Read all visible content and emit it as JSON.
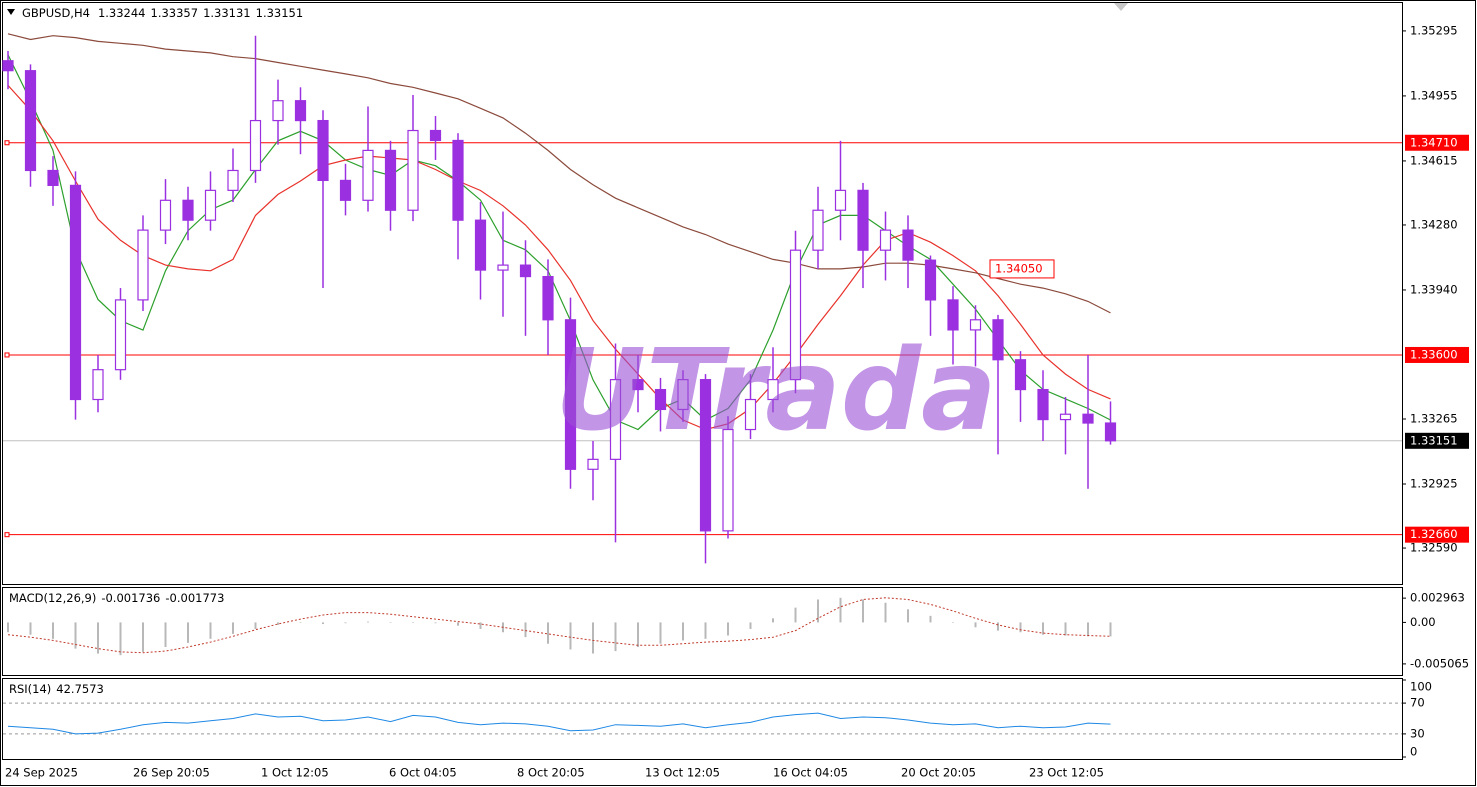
{
  "chart_data": [
    {
      "type": "candlestick",
      "title": "GBPUSD,H4",
      "header_values": [
        1.33244,
        1.33357,
        1.33131,
        1.33151
      ],
      "watermark": "UTrada",
      "ylim": [
        1.32402,
        1.35441
      ],
      "yticks": [
        1.35295,
        1.34955,
        1.34615,
        {
          "value": 1.3428,
          "label": "1.34280"
        },
        {
          "value": 1.3394,
          "label": "1.33940"
        },
        1.33265,
        1.32925,
        {
          "value": 1.3259,
          "label": "1.32590"
        }
      ],
      "bull_color": "#ffffff",
      "bear_color": "#9b30e0",
      "open": [
        1.35139,
        1.35087,
        1.34565,
        1.34487,
        1.33367,
        1.33523,
        1.33888,
        1.34253,
        1.34409,
        1.34305,
        1.34461,
        1.34565,
        1.34826,
        1.3493,
        1.34826,
        1.34513,
        1.34409,
        1.3467,
        1.34357,
        1.34774,
        1.34722,
        1.34305,
        1.34044,
        1.3407,
        1.3401,
        1.33784,
        1.33002,
        1.33054,
        1.33471,
        1.33419,
        1.33315,
        1.33471,
        1.3268,
        1.3321,
        1.33367,
        1.33471,
        1.34148,
        1.34357,
        1.34461,
        1.34148,
        1.34253,
        1.34096,
        1.33888,
        1.33731,
        1.33784,
        1.33575,
        1.33419,
        1.33262,
        1.3329,
        1.33244
      ],
      "high": [
        1.3519,
        1.3512,
        1.3464,
        1.3456,
        1.336,
        1.3395,
        1.3433,
        1.3452,
        1.3448,
        1.3456,
        1.3468,
        1.3527,
        1.3504,
        1.35,
        1.3488,
        1.346,
        1.349,
        1.3472,
        1.3496,
        1.3485,
        1.3476,
        1.344,
        1.3435,
        1.342,
        1.341,
        1.339,
        1.3315,
        1.3366,
        1.336,
        1.3348,
        1.3352,
        1.335,
        1.3328,
        1.335,
        1.3364,
        1.3425,
        1.3448,
        1.3472,
        1.345,
        1.3435,
        1.3433,
        1.3412,
        1.3396,
        1.3386,
        1.3381,
        1.3362,
        1.3352,
        1.3338,
        1.336,
        1.33357
      ],
      "low": [
        1.3499,
        1.3448,
        1.3438,
        1.33262,
        1.333,
        1.3347,
        1.3383,
        1.3418,
        1.342,
        1.3425,
        1.344,
        1.345,
        1.347,
        1.3465,
        1.3395,
        1.3433,
        1.3435,
        1.3425,
        1.343,
        1.3462,
        1.341,
        1.3389,
        1.338,
        1.337,
        1.336,
        1.329,
        1.3284,
        1.3262,
        1.333,
        1.332,
        1.3325,
        1.3251,
        1.3264,
        1.3316,
        1.333,
        1.334,
        1.3405,
        1.342,
        1.3395,
        1.3399,
        1.3395,
        1.337,
        1.3355,
        1.3354,
        1.3308,
        1.3325,
        1.3315,
        1.3308,
        1.329,
        1.33131
      ],
      "close": [
        1.35087,
        1.34565,
        1.34487,
        1.33367,
        1.33523,
        1.33888,
        1.34253,
        1.34409,
        1.34305,
        1.34461,
        1.34565,
        1.34826,
        1.3493,
        1.34826,
        1.34513,
        1.34409,
        1.3467,
        1.34357,
        1.34774,
        1.34722,
        1.34305,
        1.34044,
        1.3407,
        1.3401,
        1.33784,
        1.33002,
        1.33054,
        1.33471,
        1.33419,
        1.33315,
        1.33471,
        1.3268,
        1.3321,
        1.33367,
        1.33471,
        1.34148,
        1.34357,
        1.34461,
        1.34148,
        1.34253,
        1.34096,
        1.33888,
        1.33731,
        1.33784,
        1.33575,
        1.33419,
        1.33262,
        1.3329,
        1.33244,
        1.33151
      ],
      "moving_averages": [
        {
          "color": "#2ca02c",
          "values": [
            1.3517,
            1.3493,
            1.3467,
            1.3415,
            1.3389,
            1.3378,
            1.3373,
            1.3404,
            1.3425,
            1.3436,
            1.3441,
            1.3457,
            1.3472,
            1.3477,
            1.3472,
            1.3462,
            1.3457,
            1.3454,
            1.3462,
            1.3459,
            1.3451,
            1.3441,
            1.342,
            1.3415,
            1.3404,
            1.3378,
            1.3347,
            1.3326,
            1.3321,
            1.3332,
            1.3337,
            1.3326,
            1.3332,
            1.3347,
            1.3373,
            1.3404,
            1.3428,
            1.3433,
            1.3433,
            1.3425,
            1.3417,
            1.341,
            1.3397,
            1.3384,
            1.3368,
            1.3352,
            1.3342,
            1.3337,
            1.3332,
            1.3326
          ]
        },
        {
          "color": "#e8322b",
          "values": [
            1.3501,
            1.3488,
            1.3472,
            1.3451,
            1.3431,
            1.342,
            1.3412,
            1.3407,
            1.3405,
            1.3404,
            1.341,
            1.3433,
            1.3444,
            1.3451,
            1.3459,
            1.3462,
            1.3464,
            1.3463,
            1.3462,
            1.3457,
            1.3451,
            1.3446,
            1.3438,
            1.3428,
            1.3415,
            1.3399,
            1.3378,
            1.3363,
            1.335,
            1.3337,
            1.3326,
            1.3321,
            1.3324,
            1.3332,
            1.3345,
            1.336,
            1.3376,
            1.3391,
            1.3407,
            1.342,
            1.3424,
            1.3419,
            1.3412,
            1.3404,
            1.3391,
            1.3376,
            1.336,
            1.335,
            1.3342,
            1.3337
          ]
        },
        {
          "color": "#8b4a3c",
          "values": [
            1.3528,
            1.3525,
            1.3527,
            1.3526,
            1.3524,
            1.3523,
            1.3522,
            1.352,
            1.3519,
            1.3518,
            1.3516,
            1.3515,
            1.3513,
            1.3511,
            1.3509,
            1.3507,
            1.3505,
            1.3502,
            1.35,
            1.3497,
            1.3494,
            1.3489,
            1.3484,
            1.3476,
            1.3467,
            1.3457,
            1.3449,
            1.3442,
            1.3437,
            1.3432,
            1.3427,
            1.3423,
            1.3418,
            1.3414,
            1.341,
            1.3408,
            1.3405,
            1.3405,
            1.3406,
            1.3408,
            1.3408,
            1.3407,
            1.3405,
            1.3403,
            1.34,
            1.3397,
            1.3395,
            1.3392,
            1.3388,
            1.3382
          ]
        }
      ],
      "levels": [
        {
          "value": 1.3471,
          "label": "1.34710"
        },
        {
          "value": 1.336,
          "label": "1.33600"
        },
        {
          "value": 1.3266,
          "label": "1.32660"
        }
      ],
      "level_color": "#ff0000",
      "annotation": {
        "value": 1.3405,
        "label": "1.34050"
      },
      "current_price": 1.33151
    },
    {
      "type": "bar",
      "title": "MACD(12,26,9)",
      "header_values": [
        -0.001736,
        -0.001773
      ],
      "ylim": [
        -0.00642,
        0.0042
      ],
      "yticks": [
        0.002963,
        {
          "value": 0,
          "label": "0.00"
        },
        -0.005065
      ],
      "color": "#b8b8b8",
      "signal_color": "#c0392b",
      "values": [
        -0.0012,
        -0.0015,
        -0.002,
        -0.0032,
        -0.0038,
        -0.004,
        -0.0036,
        -0.003,
        -0.0025,
        -0.002,
        -0.0014,
        -0.0008,
        -0.0003,
        0.0,
        -0.0002,
        -0.0001,
        0.0001,
        0.0,
        0.0,
        -0.0001,
        -0.0004,
        -0.0008,
        -0.0012,
        -0.0018,
        -0.0026,
        -0.0033,
        -0.0038,
        -0.0035,
        -0.003,
        -0.0026,
        -0.0022,
        -0.002,
        -0.0016,
        -0.0008,
        0.0005,
        0.0018,
        0.0028,
        0.003,
        0.0028,
        0.0024,
        0.0016,
        0.0008,
        0.0,
        -0.0006,
        -0.001,
        -0.0012,
        -0.0015,
        -0.0016,
        -0.0017,
        -0.0017
      ],
      "signal": [
        -0.0015,
        -0.0018,
        -0.0022,
        -0.0027,
        -0.0032,
        -0.0036,
        -0.0037,
        -0.0035,
        -0.003,
        -0.0024,
        -0.0017,
        -0.0009,
        -0.0002,
        0.0004,
        0.0009,
        0.0012,
        0.0012,
        0.001,
        0.0007,
        0.0004,
        0.0001,
        -0.0002,
        -0.0006,
        -0.001,
        -0.0014,
        -0.0018,
        -0.0022,
        -0.0025,
        -0.0028,
        -0.0028,
        -0.0026,
        -0.0024,
        -0.0023,
        -0.0021,
        -0.0018,
        -0.001,
        0.0005,
        0.0019,
        0.0028,
        0.003,
        0.0028,
        0.0022,
        0.0014,
        0.0005,
        -0.0003,
        -0.0009,
        -0.0013,
        -0.0015,
        -0.0016,
        -0.0017
      ]
    },
    {
      "type": "line",
      "title": "RSI(14)",
      "header_values": [
        42.7573
      ],
      "ylim": [
        0,
        100
      ],
      "yticks": [
        100,
        70,
        30,
        0
      ],
      "levels": [
        70,
        30
      ],
      "color": "#1e88e5",
      "values": [
        40,
        38,
        36,
        30,
        31,
        36,
        42,
        45,
        44,
        47,
        50,
        56,
        52,
        53,
        47,
        48,
        52,
        46,
        54,
        52,
        45,
        42,
        44,
        43,
        40,
        34,
        35,
        42,
        41,
        40,
        43,
        38,
        42,
        45,
        52,
        55,
        57,
        50,
        52,
        51,
        48,
        44,
        42,
        43,
        38,
        40,
        38,
        39,
        44,
        42.7573
      ],
      "x_labels": [
        "24 Sep 2025",
        "26 Sep 20:05",
        "1 Oct 12:05",
        "6 Oct 04:05",
        "8 Oct 20:05",
        "13 Oct 12:05",
        "16 Oct 04:05",
        "20 Oct 20:05",
        "23 Oct 12:05"
      ]
    }
  ]
}
